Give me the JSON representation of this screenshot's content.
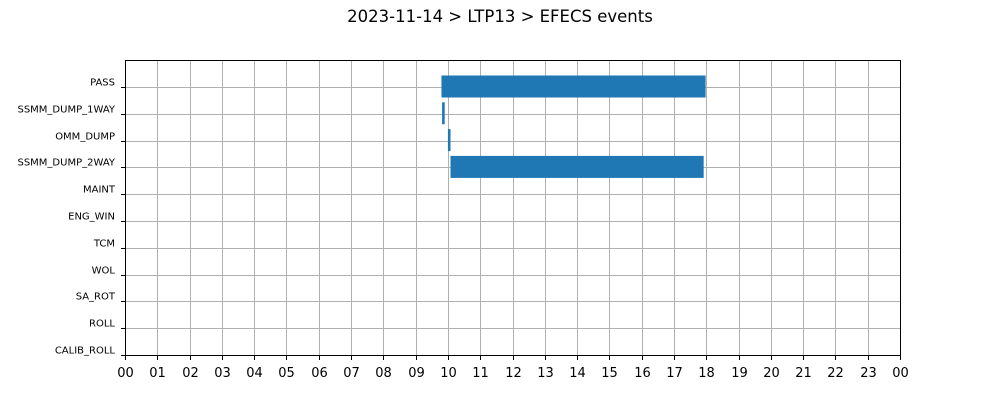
{
  "chart_data": {
    "type": "bar",
    "orientation": "horizontal-timeline",
    "title": "2023-11-14 > LTP13 > EFECS events",
    "categories": [
      "PASS",
      "SSMM_DUMP_1WAY",
      "OMM_DUMP",
      "SSMM_DUMP_2WAY",
      "MAINT",
      "ENG_WIN",
      "TCM",
      "WOL",
      "SA_ROT",
      "ROLL",
      "CALIB_ROLL"
    ],
    "x_ticks": [
      "00",
      "01",
      "02",
      "03",
      "04",
      "05",
      "06",
      "07",
      "08",
      "09",
      "10",
      "11",
      "12",
      "13",
      "14",
      "15",
      "16",
      "17",
      "18",
      "19",
      "20",
      "21",
      "22",
      "23",
      "00"
    ],
    "xlim": [
      0,
      24
    ],
    "x_unit": "hour of day",
    "grid": true,
    "bar_color": "#1f77b4",
    "events": [
      {
        "category": "PASS",
        "start": 9.8,
        "end": 17.98
      },
      {
        "category": "SSMM_DUMP_1WAY",
        "start": 9.82,
        "end": 9.9
      },
      {
        "category": "OMM_DUMP",
        "start": 10.0,
        "end": 10.08
      },
      {
        "category": "SSMM_DUMP_2WAY",
        "start": 10.08,
        "end": 17.92
      }
    ]
  }
}
